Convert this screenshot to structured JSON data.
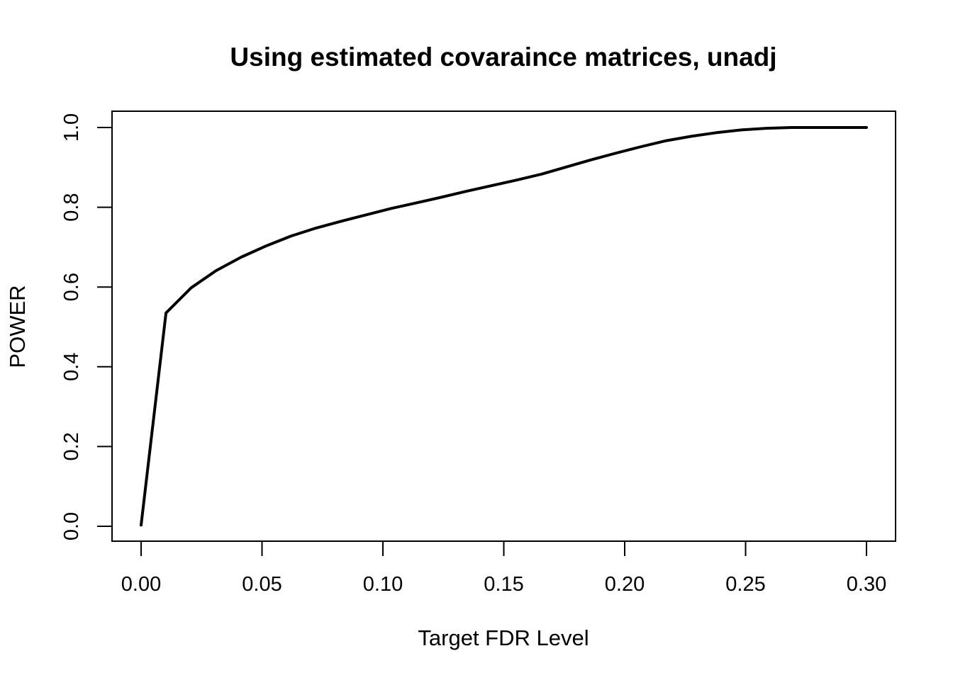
{
  "chart_data": {
    "type": "line",
    "title": "Using estimated covaraince matrices, unadj",
    "xlabel": "Target FDR Level",
    "ylabel": "POWER",
    "xlim": [
      0,
      0.3
    ],
    "ylim": [
      0,
      1
    ],
    "x_ticks": [
      "0.00",
      "0.05",
      "0.10",
      "0.15",
      "0.20",
      "0.25",
      "0.30"
    ],
    "y_ticks": [
      "0.0",
      "0.2",
      "0.4",
      "0.6",
      "0.8",
      "1.0"
    ],
    "x_tick_values": [
      0,
      0.05,
      0.1,
      0.15,
      0.2,
      0.25,
      0.3
    ],
    "y_tick_values": [
      0,
      0.2,
      0.4,
      0.6,
      0.8,
      1.0
    ],
    "grid": false,
    "series": [
      {
        "color": "#000000",
        "x": [
          0,
          0.0103,
          0.0207,
          0.031,
          0.0414,
          0.0517,
          0.0621,
          0.0724,
          0.0828,
          0.0931,
          0.1034,
          0.1138,
          0.1241,
          0.1345,
          0.1448,
          0.1552,
          0.1655,
          0.1759,
          0.1862,
          0.1966,
          0.2069,
          0.2172,
          0.2276,
          0.2379,
          0.2483,
          0.2586,
          0.269,
          0.2793,
          0.2897,
          0.3
        ],
        "y": [
          0.003,
          0.535,
          0.598,
          0.641,
          0.675,
          0.703,
          0.728,
          0.748,
          0.765,
          0.781,
          0.797,
          0.811,
          0.825,
          0.84,
          0.854,
          0.868,
          0.883,
          0.901,
          0.919,
          0.936,
          0.952,
          0.967,
          0.978,
          0.987,
          0.994,
          0.998,
          1.0,
          1.0,
          1.0,
          1.0
        ]
      }
    ]
  }
}
